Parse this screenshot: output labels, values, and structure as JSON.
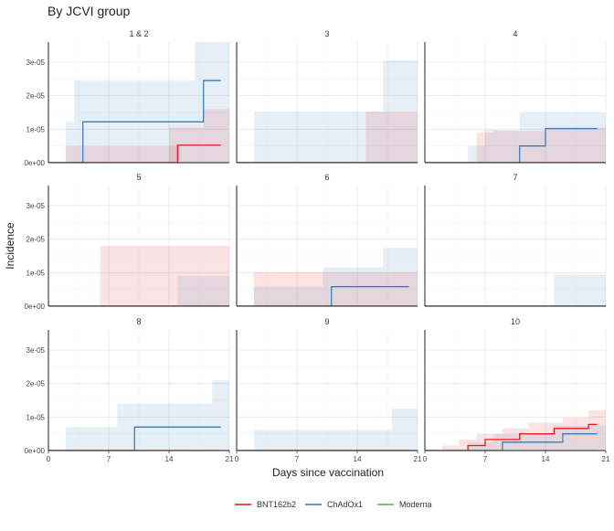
{
  "title": "By JCVI group",
  "xlabel": "Days since vaccination",
  "ylabel": "Incidence",
  "colors": {
    "BNT162b2": "#e41a1c",
    "ChAdOx1": "#377eb8",
    "Moderna": "#4daf4a"
  },
  "chart_data": {
    "type": "line",
    "facet_by": "JCVI group",
    "x_ticks": [
      0,
      7,
      14,
      21
    ],
    "x_tick_labels": [
      "0",
      "7",
      "14",
      "21"
    ],
    "xlim": [
      0,
      21
    ],
    "y_ticks": [
      0,
      1e-05,
      2e-05,
      3e-05
    ],
    "y_tick_labels": [
      "0e+00",
      "1e-05",
      "2e-05",
      "3e-05"
    ],
    "ylim": [
      0,
      3.6e-05
    ],
    "legend": [
      "BNT162b2",
      "ChAdOx1",
      "Moderna"
    ],
    "legend_position": "bottom",
    "grid": true,
    "panels": [
      {
        "label": "1 & 2",
        "series": [
          {
            "name": "BNT162b2",
            "steps": [
              [
                0,
                0
              ],
              [
                15,
                0
              ],
              [
                15,
                5.2e-06
              ],
              [
                20,
                5.2e-06
              ]
            ],
            "ribbons": [
              [
                2,
                15,
                0,
                5e-06
              ],
              [
                14,
                18,
                0,
                1.05e-05
              ],
              [
                18,
                21,
                0,
                1.6e-05
              ]
            ]
          },
          {
            "name": "ChAdOx1",
            "steps": [
              [
                0,
                0
              ],
              [
                4,
                0
              ],
              [
                4,
                1.22e-05
              ],
              [
                18,
                1.22e-05
              ],
              [
                18,
                2.45e-05
              ],
              [
                20,
                2.45e-05
              ]
            ],
            "ribbons": [
              [
                2,
                3,
                0,
                1.22e-05
              ],
              [
                3,
                17,
                0,
                2.45e-05
              ],
              [
                17,
                21,
                0,
                3.7e-05
              ]
            ]
          },
          {
            "name": "Moderna",
            "steps": [
              [
                0,
                0
              ],
              [
                21,
                0
              ]
            ],
            "ribbons": []
          }
        ]
      },
      {
        "label": "3",
        "series": [
          {
            "name": "BNT162b2",
            "steps": [
              [
                0,
                0
              ],
              [
                21,
                0
              ]
            ],
            "ribbons": [
              [
                15,
                21,
                0,
                1.52e-05
              ]
            ]
          },
          {
            "name": "ChAdOx1",
            "steps": [
              [
                0,
                0
              ],
              [
                21,
                0
              ]
            ],
            "ribbons": [
              [
                2,
                17,
                0,
                1.52e-05
              ],
              [
                17,
                21,
                0,
                3.05e-05
              ]
            ]
          },
          {
            "name": "Moderna",
            "steps": [
              [
                0,
                0
              ],
              [
                20,
                0
              ]
            ],
            "ribbons": []
          }
        ]
      },
      {
        "label": "4",
        "series": [
          {
            "name": "BNT162b2",
            "steps": [
              [
                0,
                0
              ],
              [
                21,
                0
              ]
            ],
            "ribbons": [
              [
                6,
                8,
                0,
                9e-06
              ],
              [
                8,
                14,
                0,
                9.5e-06
              ],
              [
                14,
                21,
                0,
                1.05e-05
              ]
            ]
          },
          {
            "name": "ChAdOx1",
            "steps": [
              [
                0,
                0
              ],
              [
                11,
                0
              ],
              [
                11,
                5e-06
              ],
              [
                14,
                5e-06
              ],
              [
                14,
                1.02e-05
              ],
              [
                20,
                1.02e-05
              ]
            ],
            "ribbons": [
              [
                5,
                7,
                0,
                5e-06
              ],
              [
                7,
                11,
                0,
                9.8e-06
              ],
              [
                11,
                14,
                0,
                1.5e-05
              ],
              [
                14,
                21,
                0,
                1.5e-05
              ]
            ]
          },
          {
            "name": "Moderna",
            "steps": [
              [
                0,
                0
              ],
              [
                21,
                0
              ]
            ],
            "ribbons": []
          }
        ]
      },
      {
        "label": "5",
        "series": [
          {
            "name": "BNT162b2",
            "steps": [
              [
                0,
                0
              ],
              [
                21,
                0
              ]
            ],
            "ribbons": [
              [
                6,
                21,
                0,
                1.8e-05
              ]
            ]
          },
          {
            "name": "ChAdOx1",
            "steps": [
              [
                0,
                0
              ],
              [
                21,
                0
              ]
            ],
            "ribbons": [
              [
                15,
                21,
                0,
                9e-06
              ]
            ]
          },
          {
            "name": "Moderna",
            "steps": [
              [
                0,
                0
              ],
              [
                20,
                0
              ]
            ],
            "ribbons": []
          }
        ]
      },
      {
        "label": "6",
        "series": [
          {
            "name": "BNT162b2",
            "steps": [
              [
                0,
                0
              ],
              [
                21,
                0
              ]
            ],
            "ribbons": [
              [
                2,
                21,
                0,
                1.02e-05
              ]
            ]
          },
          {
            "name": "ChAdOx1",
            "steps": [
              [
                0,
                0
              ],
              [
                11,
                0
              ],
              [
                11,
                5.8e-06
              ],
              [
                20,
                5.8e-06
              ]
            ],
            "ribbons": [
              [
                2,
                10,
                0,
                5.8e-06
              ],
              [
                10,
                17,
                0,
                1.16e-05
              ],
              [
                17,
                21,
                0,
                1.74e-05
              ]
            ]
          },
          {
            "name": "Moderna",
            "steps": [
              [
                0,
                0
              ],
              [
                20,
                0
              ]
            ],
            "ribbons": []
          }
        ]
      },
      {
        "label": "7",
        "series": [
          {
            "name": "BNT162b2",
            "steps": [
              [
                0,
                0
              ],
              [
                21,
                0
              ]
            ],
            "ribbons": []
          },
          {
            "name": "ChAdOx1",
            "steps": [
              [
                0,
                0
              ],
              [
                21,
                0
              ]
            ],
            "ribbons": [
              [
                15,
                21,
                0,
                9.5e-06
              ]
            ]
          },
          {
            "name": "Moderna",
            "steps": [
              [
                0,
                0
              ],
              [
                20,
                0
              ]
            ],
            "ribbons": []
          }
        ]
      },
      {
        "label": "8",
        "series": [
          {
            "name": "BNT162b2",
            "steps": [
              [
                0,
                0
              ],
              [
                21,
                0
              ]
            ],
            "ribbons": []
          },
          {
            "name": "ChAdOx1",
            "steps": [
              [
                0,
                0
              ],
              [
                10,
                0
              ],
              [
                10,
                7e-06
              ],
              [
                20,
                7e-06
              ]
            ],
            "ribbons": [
              [
                2,
                8,
                0,
                7e-06
              ],
              [
                8,
                19,
                0,
                1.4e-05
              ],
              [
                19,
                21,
                0,
                2.1e-05
              ]
            ]
          },
          {
            "name": "Moderna",
            "steps": [
              [
                0,
                0
              ],
              [
                20,
                0
              ]
            ],
            "ribbons": []
          }
        ]
      },
      {
        "label": "9",
        "series": [
          {
            "name": "BNT162b2",
            "steps": [
              [
                0,
                0
              ],
              [
                21,
                0
              ]
            ],
            "ribbons": []
          },
          {
            "name": "ChAdOx1",
            "steps": [
              [
                0,
                0
              ],
              [
                21,
                0
              ]
            ],
            "ribbons": [
              [
                2,
                18,
                0,
                6.2e-06
              ],
              [
                18,
                21,
                0,
                1.25e-05
              ]
            ]
          },
          {
            "name": "Moderna",
            "steps": [
              [
                0,
                0
              ],
              [
                20,
                0
              ]
            ],
            "ribbons": []
          }
        ]
      },
      {
        "label": "10",
        "series": [
          {
            "name": "BNT162b2",
            "steps": [
              [
                0,
                0
              ],
              [
                5,
                0
              ],
              [
                5,
                1.5e-06
              ],
              [
                7,
                1.5e-06
              ],
              [
                7,
                3.3e-06
              ],
              [
                11,
                3.3e-06
              ],
              [
                11,
                5e-06
              ],
              [
                15,
                5e-06
              ],
              [
                15,
                6.6e-06
              ],
              [
                19,
                6.6e-06
              ],
              [
                19,
                7.8e-06
              ],
              [
                20,
                7.8e-06
              ]
            ],
            "ribbons": [
              [
                2,
                4,
                0,
                1.5e-06
              ],
              [
                4,
                6,
                0,
                3.3e-06
              ],
              [
                6,
                9,
                0,
                5e-06
              ],
              [
                9,
                12,
                0,
                6.6e-06
              ],
              [
                12,
                16,
                0,
                8.3e-06
              ],
              [
                16,
                19,
                0,
                9.8e-06
              ],
              [
                19,
                21,
                0,
                1.2e-05
              ]
            ]
          },
          {
            "name": "ChAdOx1",
            "steps": [
              [
                0,
                0
              ],
              [
                9,
                0
              ],
              [
                9,
                2.5e-06
              ],
              [
                16,
                2.5e-06
              ],
              [
                16,
                5e-06
              ],
              [
                20,
                5e-06
              ]
            ],
            "ribbons": [
              [
                5,
                8,
                0,
                2.5e-06
              ],
              [
                8,
                15,
                0,
                5e-06
              ],
              [
                15,
                21,
                0,
                7.5e-06
              ]
            ]
          },
          {
            "name": "Moderna",
            "steps": [
              [
                0,
                0
              ],
              [
                20,
                0
              ]
            ],
            "ribbons": []
          }
        ]
      }
    ]
  }
}
